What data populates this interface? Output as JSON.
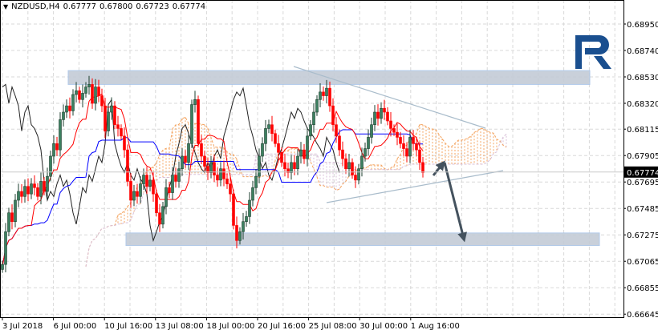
{
  "header": {
    "symbol": "NZDUSD,H4",
    "open": "0.67777",
    "high": "0.67800",
    "low": "0.67723",
    "close": "0.67774",
    "menu_icon": "triangle-down-icon"
  },
  "chart_data": {
    "type": "candlestick",
    "indicator": "Ichimoku Kinko Hyo",
    "ylim": [
      0.66645,
      0.6906
    ],
    "y_ticks": [
      "0.68950",
      "0.68740",
      "0.68530",
      "0.68320",
      "0.68115",
      "0.67905",
      "0.67695",
      "0.67485",
      "0.67275",
      "0.67065",
      "0.66855",
      "0.66645"
    ],
    "x_ticks": [
      "3 Jul 2018",
      "6 Jul 00:00",
      "10 Jul 16:00",
      "13 Jul 08:00",
      "18 Jul 00:00",
      "20 Jul 16:00",
      "25 Jul 08:00",
      "30 Jul 00:00",
      "1 Aug 16:00"
    ],
    "current_price": "0.67774",
    "grid": true,
    "closes": [
      0.6704,
      0.673,
      0.6745,
      0.6738,
      0.6755,
      0.6762,
      0.6758,
      0.6766,
      0.676,
      0.6768,
      0.6765,
      0.6758,
      0.677,
      0.6762,
      0.6774,
      0.679,
      0.68,
      0.6795,
      0.6819,
      0.6825,
      0.683,
      0.6826,
      0.6839,
      0.6842,
      0.6835,
      0.684,
      0.6845,
      0.6847,
      0.6832,
      0.6845,
      0.6838,
      0.683,
      0.681,
      0.6825,
      0.683,
      0.6815,
      0.6812,
      0.6806,
      0.6795,
      0.677,
      0.6755,
      0.6762,
      0.6758,
      0.6768,
      0.6775,
      0.6766,
      0.6771,
      0.676,
      0.6745,
      0.6736,
      0.675,
      0.6765,
      0.6761,
      0.6775,
      0.677,
      0.678,
      0.679,
      0.6785,
      0.68,
      0.6831,
      0.6835,
      0.68,
      0.679,
      0.6782,
      0.6777,
      0.6785,
      0.6775,
      0.6771,
      0.678,
      0.6772,
      0.6768,
      0.676,
      0.6735,
      0.6723,
      0.673,
      0.6738,
      0.6742,
      0.6755,
      0.6765,
      0.6774,
      0.679,
      0.68,
      0.6812,
      0.6815,
      0.6808,
      0.68,
      0.6793,
      0.6785,
      0.678,
      0.6777,
      0.6785,
      0.678,
      0.679,
      0.6795,
      0.6788,
      0.6806,
      0.6815,
      0.6825,
      0.6835,
      0.6841,
      0.6838,
      0.6844,
      0.683,
      0.6815,
      0.6806,
      0.6795,
      0.6788,
      0.678,
      0.6785,
      0.6775,
      0.6771,
      0.678,
      0.679,
      0.6796,
      0.6805,
      0.6815,
      0.6825,
      0.682,
      0.6828,
      0.6825,
      0.6818,
      0.6812,
      0.6809,
      0.6805,
      0.68,
      0.6796,
      0.679,
      0.6805,
      0.68,
      0.6795,
      0.6785,
      0.6777
    ],
    "zones": [
      {
        "top": 0.6858,
        "bottom": 0.6847
      },
      {
        "top": 0.6729,
        "bottom": 0.6719
      }
    ],
    "colors": {
      "bull": "#3c7f5f",
      "bear": "#ff0000",
      "tenkan": "#ff0000",
      "kijun": "#0000ff",
      "senkou_a": "#f4a460",
      "senkou_b": "#d8bfd8",
      "chikou": "#222222",
      "zone": "#c4ccd6",
      "arrow": "#44525e",
      "logo": "#1a4f8f"
    }
  }
}
